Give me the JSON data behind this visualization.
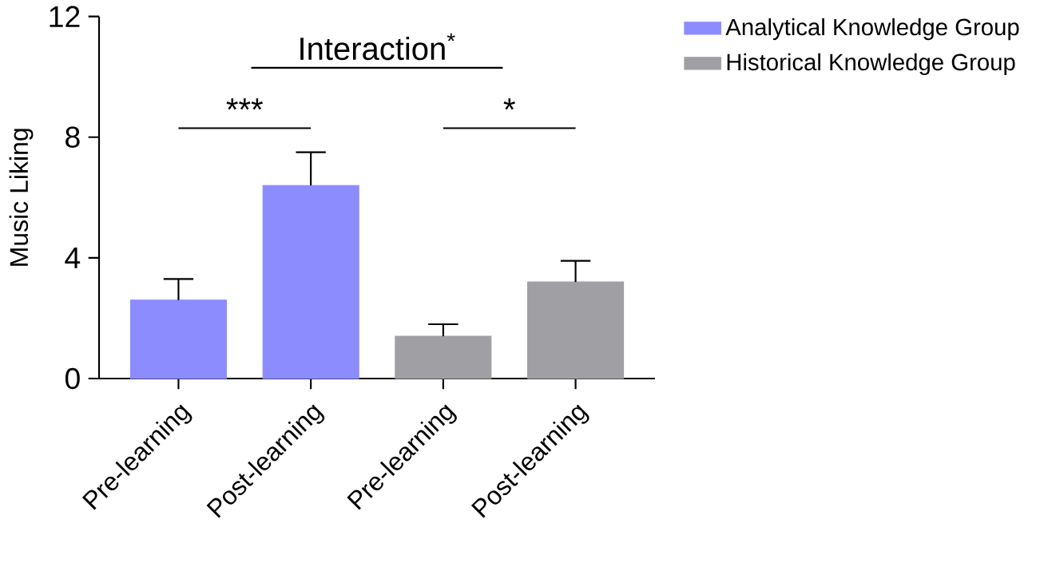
{
  "chart_data": {
    "type": "bar",
    "ylabel": "Music Liking",
    "categories": [
      "Pre-learning",
      "Post-learning",
      "Pre-learning",
      "Post-learning"
    ],
    "series": [
      {
        "name": "Analytical Knowledge Group",
        "color": "#8c8cff",
        "values": [
          2.6,
          6.4,
          null,
          null
        ],
        "errors": [
          0.7,
          1.1,
          null,
          null
        ]
      },
      {
        "name": "Historical Knowledge Group",
        "color": "#a0a0a4",
        "values": [
          null,
          null,
          1.4,
          3.2
        ],
        "errors": [
          null,
          null,
          0.4,
          0.7
        ]
      }
    ],
    "ylim": [
      0,
      12
    ],
    "yticks": [
      0,
      4,
      8,
      12
    ],
    "grid": false,
    "legend": "top right",
    "annotations": [
      "***",
      "*",
      "Interaction$^{*}$"
    ]
  }
}
